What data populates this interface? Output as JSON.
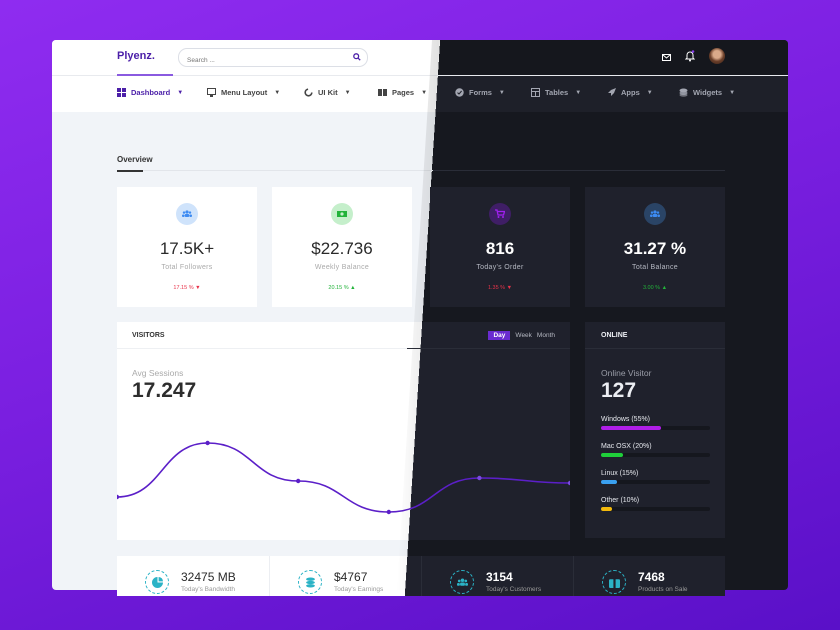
{
  "brand": "Plyenz.",
  "search": {
    "placeholder": "Search ..."
  },
  "nav": [
    {
      "label": "Dashboard",
      "icon": "grid-icon",
      "active": true
    },
    {
      "label": "Menu Layout",
      "icon": "monitor-icon"
    },
    {
      "label": "UI Kit",
      "icon": "loader-icon"
    },
    {
      "label": "Pages",
      "icon": "book-icon"
    },
    {
      "label": "Forms",
      "icon": "check-circle-icon"
    },
    {
      "label": "Tables",
      "icon": "table-icon"
    },
    {
      "label": "Apps",
      "icon": "rocket-icon"
    },
    {
      "label": "Widgets",
      "icon": "layers-icon"
    }
  ],
  "tab": "Overview",
  "stats": [
    {
      "value": "17.5K+",
      "label": "Total Followers",
      "pct": "17.15 %",
      "dir": "down",
      "color": "#3d8bf2"
    },
    {
      "value": "$22.736",
      "label": "Weekly Balance",
      "pct": "20.15 %",
      "dir": "up",
      "color": "#22b33a"
    },
    {
      "value": "816",
      "label": "Today's Order",
      "pct": "1.35 %",
      "dir": "down",
      "color": "#a020f0"
    },
    {
      "value": "31.27 %",
      "label": "Total Balance",
      "pct": "3.00 %",
      "dir": "up",
      "color": "#3d8bf2"
    }
  ],
  "visitors": {
    "title": "VISITORS",
    "ranges": [
      "Day",
      "Week",
      "Month"
    ],
    "active_range": "Day",
    "metric_label": "Avg Sessions",
    "metric_value": "17.247"
  },
  "chart_data": {
    "type": "line",
    "values": [
      43,
      97,
      59,
      28,
      62,
      57
    ],
    "color": "#5b1fc8",
    "smooth": true,
    "grid": false,
    "axes": false
  },
  "online": {
    "title": "ONLINE",
    "label": "Online Visitor",
    "value": "127",
    "items": [
      {
        "label": "Windows (55%)",
        "percent": 55,
        "color": "#b01ee8"
      },
      {
        "label": "Mac OSX (20%)",
        "percent": 20,
        "color": "#1fcf3a"
      },
      {
        "label": "Linux (15%)",
        "percent": 15,
        "color": "#3aa0f0"
      },
      {
        "label": "Other (10%)",
        "percent": 10,
        "color": "#f2b90c"
      }
    ]
  },
  "bottom": [
    {
      "value": "32475 MB",
      "label": "Today's Bandwidth",
      "icon": "pie-chart-icon"
    },
    {
      "value": "$4767",
      "label": "Today's Earnings",
      "icon": "coins-icon"
    },
    {
      "value": "3154",
      "label": "Today's Customers",
      "icon": "users-icon"
    },
    {
      "value": "7468",
      "label": "Products on Sale",
      "icon": "box-icon"
    }
  ]
}
